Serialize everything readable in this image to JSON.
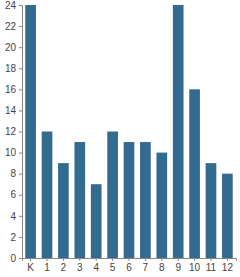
{
  "chart_data": {
    "type": "bar",
    "categories": [
      "K",
      "1",
      "2",
      "3",
      "4",
      "5",
      "6",
      "7",
      "8",
      "9",
      "10",
      "11",
      "12"
    ],
    "values": [
      24,
      12,
      9,
      11,
      7,
      12,
      11,
      11,
      10,
      24,
      16,
      9,
      8
    ],
    "color": "#336a90",
    "ylim": [
      0,
      24
    ],
    "yticks": [
      0,
      2,
      4,
      6,
      8,
      10,
      12,
      14,
      16,
      18,
      20,
      22,
      24
    ],
    "grid": false
  }
}
